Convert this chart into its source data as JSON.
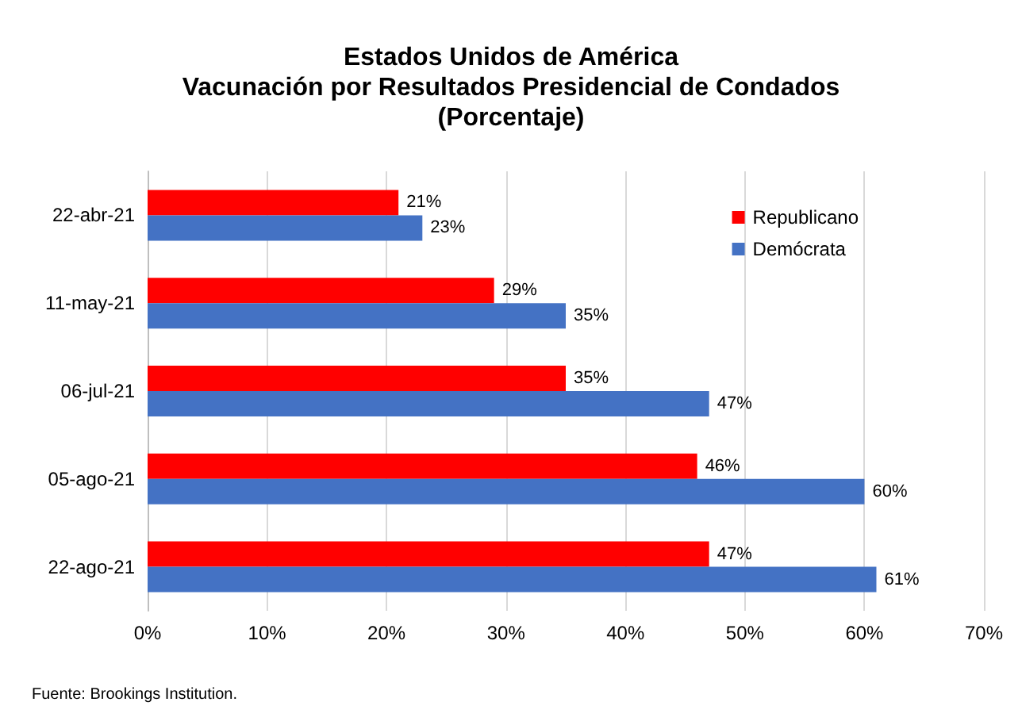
{
  "chart_data": {
    "type": "bar",
    "orientation": "horizontal",
    "title": "Estados Unidos de América\nVacunación por Resultados Presidencial de Condados\n(Porcentaje)",
    "categories": [
      "22-abr-21",
      "11-may-21",
      "06-jul-21",
      "05-ago-21",
      "22-ago-21"
    ],
    "series": [
      {
        "name": "Republicano",
        "color": "#ff0000",
        "values": [
          21,
          29,
          35,
          46,
          47
        ],
        "value_labels": [
          "21%",
          "29%",
          "35%",
          "46%",
          "47%"
        ]
      },
      {
        "name": "Demócrata",
        "color": "#4472c4",
        "values": [
          23,
          35,
          47,
          60,
          61
        ],
        "value_labels": [
          "23%",
          "35%",
          "47%",
          "60%",
          "61%"
        ]
      }
    ],
    "xlim": [
      0,
      70
    ],
    "xticks": [
      {
        "value": 0,
        "label": "0%"
      },
      {
        "value": 10,
        "label": "10%"
      },
      {
        "value": 20,
        "label": "20%"
      },
      {
        "value": 30,
        "label": "30%"
      },
      {
        "value": 40,
        "label": "40%"
      },
      {
        "value": 50,
        "label": "50%"
      },
      {
        "value": 60,
        "label": "60%"
      },
      {
        "value": 70,
        "label": "70%"
      }
    ],
    "grid": "x",
    "legend": "top right",
    "annotations": [
      "Fuente: Brookings Institution."
    ]
  }
}
